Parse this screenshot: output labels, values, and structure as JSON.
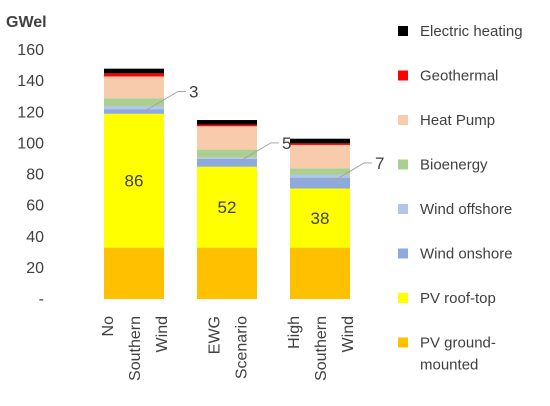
{
  "chart_data": {
    "type": "bar",
    "stacked": true,
    "ylabel": "GWel",
    "ylim": [
      0,
      160
    ],
    "yticks": [
      {
        "value": 0,
        "label": "-"
      },
      {
        "value": 20,
        "label": "20"
      },
      {
        "value": 40,
        "label": "40"
      },
      {
        "value": 60,
        "label": "60"
      },
      {
        "value": 80,
        "label": "80"
      },
      {
        "value": 100,
        "label": "100"
      },
      {
        "value": 120,
        "label": "120"
      },
      {
        "value": 140,
        "label": "140"
      },
      {
        "value": 160,
        "label": "160"
      }
    ],
    "grid": false,
    "legend_position": "right",
    "categories": [
      "No Southern Wind",
      "EWG Scenario",
      "High Southern Wind"
    ],
    "category_lines": [
      [
        "No",
        "Southern",
        "Wind"
      ],
      [
        "EWG",
        "Scenario"
      ],
      [
        "High",
        "Southern",
        "Wind"
      ]
    ],
    "series": [
      {
        "name": "PV ground-mounted",
        "legend_lines": [
          "PV ground-",
          "mounted"
        ],
        "color": "#FFC000",
        "values": [
          33,
          33,
          33
        ]
      },
      {
        "name": "PV roof-top",
        "legend_lines": [
          "PV roof-top"
        ],
        "color": "#FFFF00",
        "values": [
          86,
          52,
          38
        ],
        "data_labels": [
          "86",
          "52",
          "38"
        ]
      },
      {
        "name": "Wind onshore",
        "legend_lines": [
          "Wind onshore"
        ],
        "color": "#8EA9DB",
        "values": [
          3,
          5,
          7
        ]
      },
      {
        "name": "Wind offshore",
        "legend_lines": [
          "Wind offshore"
        ],
        "color": "#B4C6E7",
        "values": [
          2,
          1,
          2
        ]
      },
      {
        "name": "Bioenergy",
        "legend_lines": [
          "Bioenergy"
        ],
        "color": "#A9D08E",
        "values": [
          5,
          5,
          4
        ]
      },
      {
        "name": "Heat Pump",
        "legend_lines": [
          "Heat Pump"
        ],
        "color": "#F8CBAD",
        "values": [
          14,
          15,
          15
        ]
      },
      {
        "name": "Geothermal",
        "legend_lines": [
          "Geothermal"
        ],
        "color": "#FF0000",
        "values": [
          2,
          1,
          1
        ]
      },
      {
        "name": "Electric heating",
        "legend_lines": [
          "Electric heating"
        ],
        "color": "#000000",
        "values": [
          3,
          3,
          3
        ]
      }
    ],
    "callouts": [
      {
        "category": "No Southern Wind",
        "series": "Wind onshore",
        "text": "3"
      },
      {
        "category": "EWG Scenario",
        "series": "Wind onshore",
        "text": "5"
      },
      {
        "category": "High Southern Wind",
        "series": "Wind onshore",
        "text": "7"
      }
    ]
  }
}
